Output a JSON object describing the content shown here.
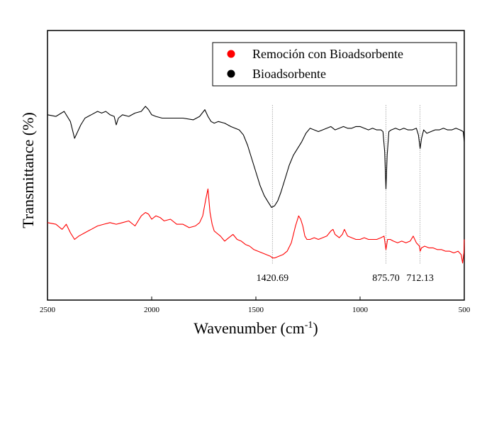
{
  "chart_data": {
    "type": "line",
    "title": "",
    "xlabel": "Wavenumber (cm",
    "xlabel_sup": "-1",
    "xlabel_close": ")",
    "ylabel": "Transmittance (%)",
    "xlim": [
      2500,
      500
    ],
    "x_reversed": true,
    "x_ticks": [
      2500,
      2000,
      1500,
      1000,
      500
    ],
    "y_ticks_shown": false,
    "grid": false,
    "legend": {
      "placement": "top-right",
      "entries": [
        {
          "label": "Remoción con Bioadsorbente",
          "color": "#ff0000"
        },
        {
          "label": "Bioadsorbente",
          "color": "#000000"
        }
      ]
    },
    "annotations": [
      {
        "x": 1420.69,
        "label": "1420.69"
      },
      {
        "x": 875.7,
        "label": "875.70"
      },
      {
        "x": 712.13,
        "label": "712.13"
      }
    ],
    "series": [
      {
        "name": "Bioadsorbente",
        "color": "#000000",
        "x": [
          2500,
          2460,
          2420,
          2390,
          2370,
          2355,
          2340,
          2320,
          2290,
          2260,
          2240,
          2220,
          2200,
          2180,
          2170,
          2160,
          2140,
          2110,
          2080,
          2050,
          2030,
          2015,
          2000,
          1980,
          1950,
          1900,
          1850,
          1800,
          1770,
          1745,
          1730,
          1715,
          1700,
          1680,
          1650,
          1620,
          1600,
          1580,
          1560,
          1540,
          1520,
          1500,
          1480,
          1460,
          1440,
          1425,
          1410,
          1395,
          1380,
          1360,
          1340,
          1320,
          1300,
          1280,
          1260,
          1240,
          1220,
          1200,
          1180,
          1160,
          1140,
          1120,
          1100,
          1080,
          1060,
          1040,
          1020,
          1000,
          980,
          960,
          940,
          920,
          900,
          890,
          882,
          876,
          870,
          862,
          850,
          830,
          810,
          790,
          770,
          750,
          730,
          720,
          712,
          705,
          695,
          680,
          660,
          640,
          620,
          600,
          580,
          560,
          540,
          520,
          505,
          500
        ],
        "y": [
          85,
          84.5,
          86,
          83,
          78,
          80,
          82,
          84,
          85,
          86,
          85.5,
          86,
          85,
          84.5,
          82,
          84,
          85,
          84.5,
          85.5,
          86,
          87.5,
          86.5,
          85,
          84.5,
          84,
          84,
          84,
          83.5,
          84.5,
          86.5,
          84.5,
          83,
          82.5,
          83,
          82.5,
          81.5,
          81,
          80.5,
          79,
          76,
          72,
          68,
          64,
          61,
          59,
          57.5,
          58,
          59.5,
          62,
          66,
          70,
          73,
          75,
          77,
          79.5,
          81,
          80.5,
          80,
          80.5,
          81,
          81.5,
          80.5,
          81,
          81.5,
          81,
          81,
          81.5,
          81.5,
          81,
          80.5,
          81,
          80.5,
          80.5,
          80,
          74,
          63,
          73,
          80,
          80.5,
          81,
          80.5,
          81,
          80.5,
          80.5,
          81,
          79,
          75,
          78,
          80.5,
          79.5,
          80,
          80.5,
          80.5,
          81,
          80.5,
          80.5,
          81,
          80.5,
          80,
          77
        ]
      },
      {
        "name": "Remoción con Bioadsorbente",
        "color": "#ff0000",
        "x": [
          2500,
          2460,
          2430,
          2410,
          2390,
          2370,
          2350,
          2320,
          2290,
          2260,
          2230,
          2200,
          2170,
          2140,
          2110,
          2080,
          2050,
          2030,
          2015,
          2000,
          1980,
          1960,
          1940,
          1910,
          1880,
          1850,
          1820,
          1790,
          1770,
          1755,
          1740,
          1730,
          1720,
          1710,
          1700,
          1690,
          1670,
          1650,
          1630,
          1610,
          1590,
          1570,
          1550,
          1530,
          1510,
          1490,
          1470,
          1450,
          1430,
          1420,
          1410,
          1390,
          1370,
          1350,
          1330,
          1310,
          1295,
          1285,
          1275,
          1265,
          1255,
          1240,
          1220,
          1200,
          1180,
          1160,
          1140,
          1130,
          1120,
          1100,
          1085,
          1075,
          1060,
          1040,
          1020,
          1000,
          980,
          960,
          940,
          920,
          900,
          885,
          876,
          868,
          855,
          840,
          820,
          800,
          780,
          760,
          745,
          730,
          715,
          712,
          705,
          690,
          670,
          650,
          630,
          610,
          590,
          570,
          550,
          530,
          515,
          508,
          502,
          500
        ],
        "y": [
          53,
          52.5,
          51,
          52.5,
          50,
          48,
          49,
          50,
          51,
          52,
          52.5,
          53,
          52.5,
          53,
          53.5,
          52,
          55,
          56,
          55.5,
          54,
          55,
          54.5,
          53.5,
          54,
          52.5,
          52.5,
          51.5,
          52,
          53,
          55,
          60,
          63,
          56,
          52.5,
          50.5,
          50,
          49,
          47.5,
          48.5,
          49.5,
          48,
          47.5,
          46.5,
          46,
          45,
          44.5,
          44,
          43.5,
          43,
          42.5,
          42.5,
          43,
          43.5,
          44.5,
          47,
          52,
          55,
          54,
          52,
          49,
          48,
          48,
          48.5,
          48,
          48.5,
          49,
          50.5,
          51,
          49.5,
          48.5,
          49.5,
          51,
          49,
          48.5,
          48,
          48,
          48.5,
          48,
          48,
          48,
          48.5,
          49,
          45,
          48,
          48,
          47.5,
          47,
          47.5,
          47,
          47.5,
          49,
          47,
          46,
          44.5,
          45.5,
          46,
          45.5,
          45.5,
          45,
          45,
          44.5,
          44.5,
          44,
          44.5,
          43.5,
          41,
          44,
          48
        ]
      }
    ]
  }
}
